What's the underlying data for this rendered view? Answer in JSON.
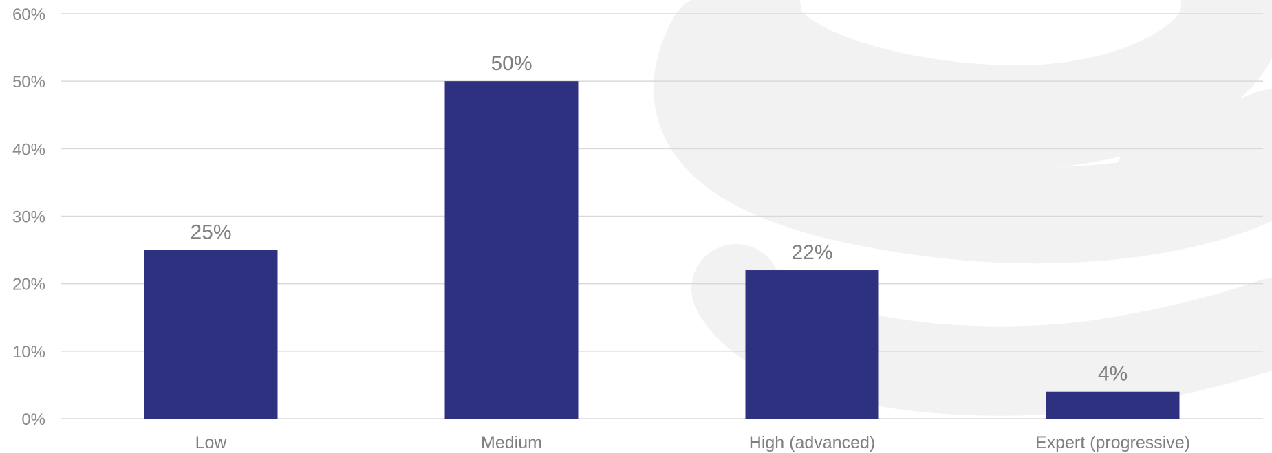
{
  "chart_data": {
    "type": "bar",
    "categories": [
      "Low",
      "Medium",
      "High (advanced)",
      "Expert (progressive)"
    ],
    "values": [
      25,
      50,
      22,
      4
    ],
    "data_labels": [
      "25%",
      "50%",
      "22%",
      "4%"
    ],
    "ylim": [
      0,
      60
    ],
    "yticks": [
      "0%",
      "10%",
      "20%",
      "30%",
      "40%",
      "50%",
      "60%"
    ],
    "grid": true,
    "legend": "none",
    "bar_color": "#2e3180",
    "grid_color": "#d9d9d9",
    "label_color": "#7f7f7f"
  }
}
